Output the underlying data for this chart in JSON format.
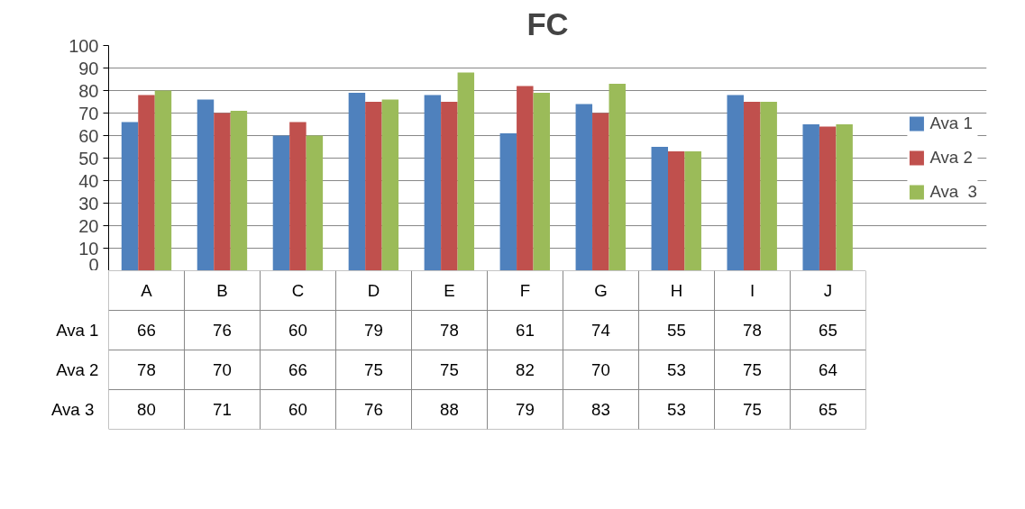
{
  "chart_data": {
    "type": "bar",
    "title": "FC",
    "categories": [
      "A",
      "B",
      "C",
      "D",
      "E",
      "F",
      "G",
      "H",
      "I",
      "J"
    ],
    "series": [
      {
        "name": "Ava 1",
        "color": "#4f81bd",
        "values": [
          66,
          76,
          60,
          79,
          78,
          61,
          74,
          55,
          78,
          65
        ]
      },
      {
        "name": "Ava 2",
        "color": "#c0504d",
        "values": [
          78,
          70,
          66,
          75,
          75,
          82,
          70,
          53,
          75,
          64
        ]
      },
      {
        "name": "Ava  3",
        "color": "#9bbb59",
        "values": [
          80,
          71,
          60,
          76,
          88,
          79,
          83,
          53,
          75,
          65
        ]
      }
    ],
    "ylim": [
      0,
      100
    ],
    "yticks": [
      0,
      10,
      20,
      30,
      40,
      50,
      60,
      70,
      80,
      90,
      100
    ],
    "grid": "y",
    "legend": "right",
    "data_labels": true
  }
}
